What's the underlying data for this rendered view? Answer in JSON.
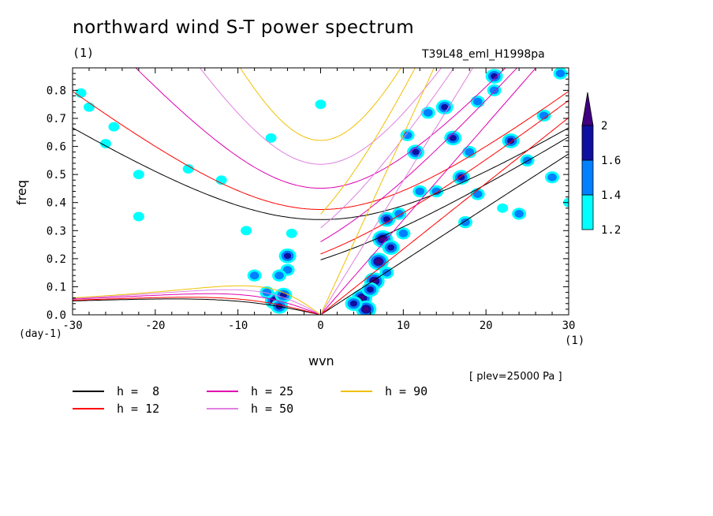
{
  "chart_data": {
    "type": "heatmap",
    "title": "northward wind S-T power spectrum",
    "unit_top": "(1)",
    "run_id": "T39L48_eml_H1998pa",
    "xlabel": "wvn",
    "ylabel": "freq",
    "x_unit": "(1)",
    "y_unit": "(day-1)",
    "level_note": "[ plev=25000 Pa ]",
    "xlim": [
      -30,
      30
    ],
    "ylim": [
      0,
      0.88
    ],
    "xticks": [
      -30,
      -20,
      -10,
      0,
      10,
      20,
      30
    ],
    "xtick_labels": [
      "-30",
      "-20",
      "-10",
      "0",
      "10",
      "20",
      "30"
    ],
    "yticks": [
      0,
      0.1,
      0.2,
      0.3,
      0.4,
      0.5,
      0.6,
      0.7,
      0.8
    ],
    "ytick_labels": [
      "0.0",
      "0.1",
      "0.2",
      "0.3",
      "0.4",
      "0.5",
      "0.6",
      "0.7",
      "0.8"
    ],
    "colorbar": {
      "levels": [
        1.2,
        1.4,
        1.6,
        2
      ],
      "labels": [
        "1.2",
        "1.4",
        "1.6",
        "2"
      ],
      "colors": [
        "#00ffff",
        "#0080ff",
        "#1010a0",
        "#400080"
      ]
    },
    "dispersion_curves": [
      {
        "label": "h =  8",
        "color": "#000000"
      },
      {
        "label": "h = 12",
        "color": "#ff0000"
      },
      {
        "label": "h = 25",
        "color": "#e000b0"
      },
      {
        "label": "h = 50",
        "color": "#e080e0"
      },
      {
        "label": "h = 90",
        "color": "#f0c000"
      }
    ],
    "power_blobs": [
      {
        "x": -5.5,
        "y": 0.05,
        "level": 3
      },
      {
        "x": -5.0,
        "y": 0.03,
        "level": 2
      },
      {
        "x": -4.5,
        "y": 0.07,
        "level": 2
      },
      {
        "x": -6.5,
        "y": 0.08,
        "level": 1
      },
      {
        "x": -4.0,
        "y": 0.21,
        "level": 2
      },
      {
        "x": -4.0,
        "y": 0.16,
        "level": 1
      },
      {
        "x": -5.0,
        "y": 0.14,
        "level": 1
      },
      {
        "x": -8.0,
        "y": 0.14,
        "level": 1
      },
      {
        "x": -3.5,
        "y": 0.29,
        "level": 0
      },
      {
        "x": 5.0,
        "y": 0.06,
        "level": 3
      },
      {
        "x": 5.5,
        "y": 0.02,
        "level": 3
      },
      {
        "x": 6.5,
        "y": 0.12,
        "level": 3
      },
      {
        "x": 7.0,
        "y": 0.19,
        "level": 3
      },
      {
        "x": 7.5,
        "y": 0.27,
        "level": 3
      },
      {
        "x": 8.0,
        "y": 0.34,
        "level": 2
      },
      {
        "x": 4.0,
        "y": 0.04,
        "level": 2
      },
      {
        "x": 6.0,
        "y": 0.09,
        "level": 2
      },
      {
        "x": 8.5,
        "y": 0.24,
        "level": 2
      },
      {
        "x": 8.0,
        "y": 0.15,
        "level": 1
      },
      {
        "x": 10.0,
        "y": 0.29,
        "level": 1
      },
      {
        "x": 9.5,
        "y": 0.36,
        "level": 1
      },
      {
        "x": 11.5,
        "y": 0.58,
        "level": 2
      },
      {
        "x": 13.0,
        "y": 0.72,
        "level": 1
      },
      {
        "x": 15.0,
        "y": 0.74,
        "level": 2
      },
      {
        "x": 16.0,
        "y": 0.63,
        "level": 2
      },
      {
        "x": 18.0,
        "y": 0.58,
        "level": 1
      },
      {
        "x": 19.0,
        "y": 0.76,
        "level": 1
      },
      {
        "x": 21.0,
        "y": 0.8,
        "level": 1
      },
      {
        "x": 23.0,
        "y": 0.62,
        "level": 2
      },
      {
        "x": 25.0,
        "y": 0.55,
        "level": 1
      },
      {
        "x": 19.0,
        "y": 0.43,
        "level": 1
      },
      {
        "x": 17.5,
        "y": 0.33,
        "level": 1
      },
      {
        "x": 17.0,
        "y": 0.49,
        "level": 2
      },
      {
        "x": 14.0,
        "y": 0.44,
        "level": 1
      },
      {
        "x": 12.0,
        "y": 0.44,
        "level": 1
      },
      {
        "x": 27.0,
        "y": 0.71,
        "level": 1
      },
      {
        "x": 28.0,
        "y": 0.49,
        "level": 1
      },
      {
        "x": 24.0,
        "y": 0.36,
        "level": 1
      },
      {
        "x": 21.0,
        "y": 0.85,
        "level": 2
      },
      {
        "x": 29.0,
        "y": 0.86,
        "level": 1
      },
      {
        "x": 10.5,
        "y": 0.64,
        "level": 1
      },
      {
        "x": -29.0,
        "y": 0.79,
        "level": 0
      },
      {
        "x": -28.0,
        "y": 0.74,
        "level": 0
      },
      {
        "x": -26.0,
        "y": 0.61,
        "level": 0
      },
      {
        "x": -22.0,
        "y": 0.5,
        "level": 0
      },
      {
        "x": -12.0,
        "y": 0.48,
        "level": 0
      },
      {
        "x": -9.0,
        "y": 0.3,
        "level": 0
      },
      {
        "x": -22.0,
        "y": 0.35,
        "level": 0
      },
      {
        "x": -16.0,
        "y": 0.52,
        "level": 0
      },
      {
        "x": -25.0,
        "y": 0.67,
        "level": 0
      },
      {
        "x": 0.0,
        "y": 0.75,
        "level": 0
      },
      {
        "x": -6.0,
        "y": 0.63,
        "level": 0
      },
      {
        "x": 22.0,
        "y": 0.38,
        "level": 0
      },
      {
        "x": 30.0,
        "y": 0.4,
        "level": 0
      }
    ]
  }
}
